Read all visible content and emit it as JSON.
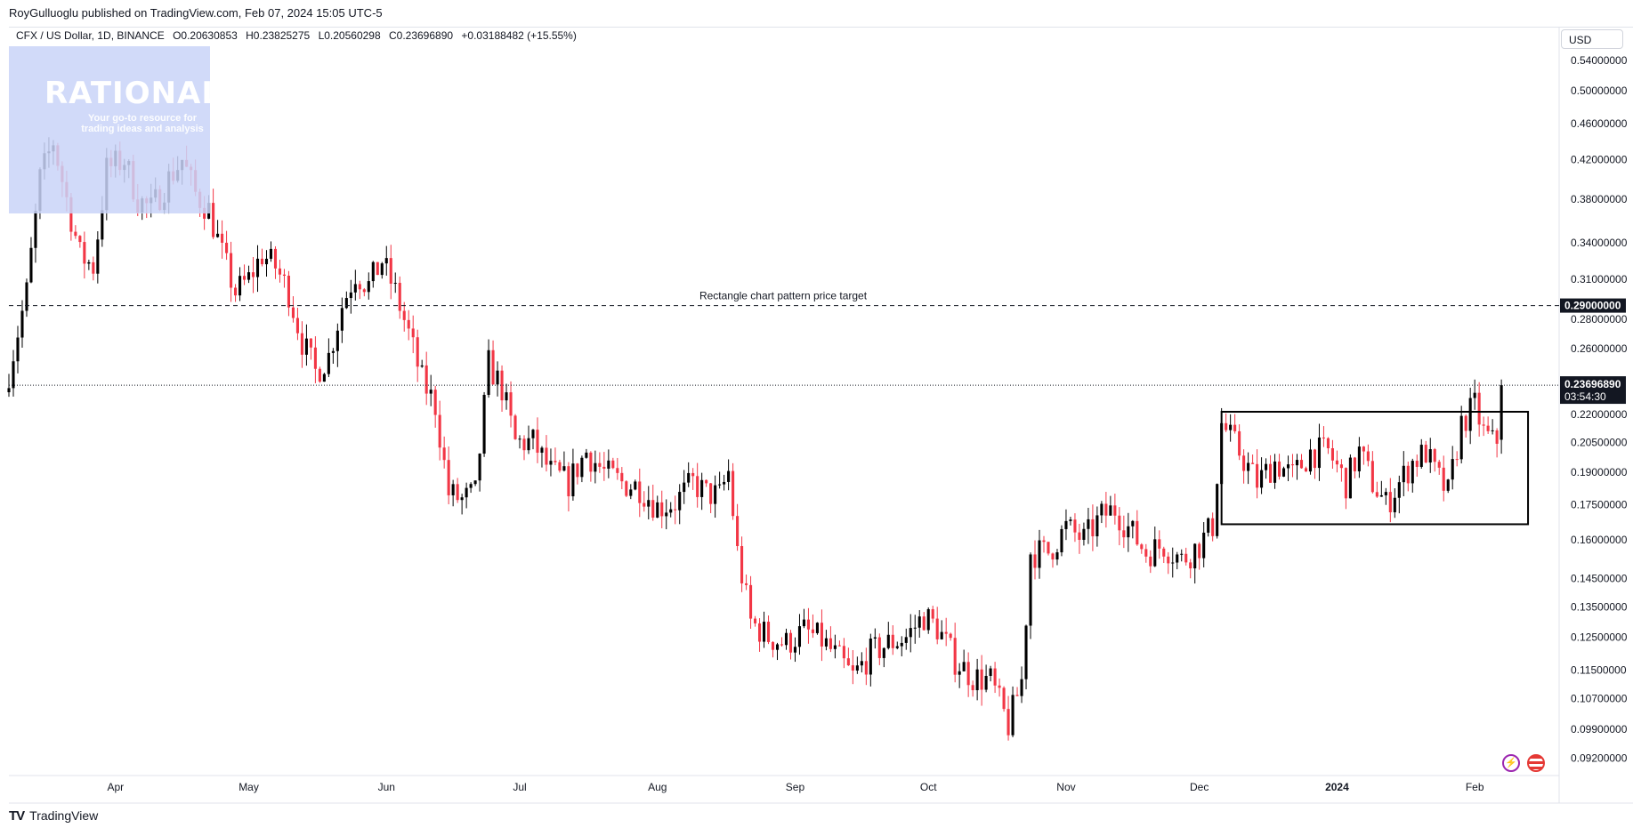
{
  "publisher_line": "RoyGulluoglu published on TradingView.com, Feb 07, 2024 15:05 UTC-5",
  "symbol": {
    "name": "CFX / US Dollar, 1D, BINANCE",
    "open": "O0.20630853",
    "high": "H0.23825275",
    "low": "L0.20560298",
    "close": "C0.23696890",
    "change": "+0.03188482 (+15.55%)"
  },
  "watermark": {
    "title": "RATIONALE",
    "subtitle": "Your go-to resource for trading ideas and analysis"
  },
  "currency_label": "USD",
  "footer_brand": "TradingView",
  "colors": {
    "up": "#000000",
    "down": "#f23645",
    "price_tag_bg": "#131722",
    "watermark_bg": "#c9d3f8"
  },
  "chart_data": {
    "type": "candlestick",
    "scale": "log",
    "ylim": [
      0.088,
      0.56
    ],
    "y_ticks": [
      "0.54000000",
      "0.50000000",
      "0.46000000",
      "0.42000000",
      "0.38000000",
      "0.34000000",
      "0.31000000",
      "0.28000000",
      "0.26000000",
      "0.22000000",
      "0.20500000",
      "0.19000000",
      "0.17500000",
      "0.16000000",
      "0.14500000",
      "0.13500000",
      "0.12500000",
      "0.11500000",
      "0.10700000",
      "0.09900000",
      "0.09200000"
    ],
    "x_range": [
      "2023-03-08",
      "2024-02-20"
    ],
    "x_ticks": [
      {
        "label": "Apr",
        "date": "2023-04-01"
      },
      {
        "label": "May",
        "date": "2023-05-01"
      },
      {
        "label": "Jun",
        "date": "2023-06-01"
      },
      {
        "label": "Jul",
        "date": "2023-07-01"
      },
      {
        "label": "Aug",
        "date": "2023-08-01"
      },
      {
        "label": "Sep",
        "date": "2023-09-01"
      },
      {
        "label": "Oct",
        "date": "2023-10-01"
      },
      {
        "label": "Nov",
        "date": "2023-11-01"
      },
      {
        "label": "Dec",
        "date": "2023-12-01"
      },
      {
        "label": "2024",
        "date": "2024-01-01"
      },
      {
        "label": "Feb",
        "date": "2024-02-01"
      }
    ],
    "current_price": {
      "value": 0.2369689,
      "label": "0.23696890",
      "countdown": "03:54:30"
    },
    "target_level": {
      "value": 0.29,
      "label": "0.29000000",
      "annotation": "Rectangle chart pattern price target"
    },
    "rectangle": {
      "start": "2023-12-06",
      "end": "2024-02-13",
      "top": 0.2215,
      "bottom": 0.1665
    },
    "closes": [
      [
        "2023-03-08",
        0.245
      ],
      [
        "2023-03-12",
        0.3
      ],
      [
        "2023-03-15",
        0.4
      ],
      [
        "2023-03-18",
        0.44
      ],
      [
        "2023-03-21",
        0.38
      ],
      [
        "2023-03-24",
        0.33
      ],
      [
        "2023-03-27",
        0.32
      ],
      [
        "2023-03-30",
        0.41
      ],
      [
        "2023-04-03",
        0.42
      ],
      [
        "2023-04-06",
        0.38
      ],
      [
        "2023-04-09",
        0.37
      ],
      [
        "2023-04-13",
        0.4
      ],
      [
        "2023-04-16",
        0.42
      ],
      [
        "2023-04-19",
        0.385
      ],
      [
        "2023-04-22",
        0.37
      ],
      [
        "2023-04-25",
        0.33
      ],
      [
        "2023-04-28",
        0.3
      ],
      [
        "2023-05-01",
        0.31
      ],
      [
        "2023-05-04",
        0.33
      ],
      [
        "2023-05-07",
        0.32
      ],
      [
        "2023-05-10",
        0.3
      ],
      [
        "2023-05-13",
        0.265
      ],
      [
        "2023-05-16",
        0.245
      ],
      [
        "2023-05-19",
        0.255
      ],
      [
        "2023-05-22",
        0.29
      ],
      [
        "2023-05-25",
        0.315
      ],
      [
        "2023-05-28",
        0.305
      ],
      [
        "2023-05-31",
        0.325
      ],
      [
        "2023-06-03",
        0.3
      ],
      [
        "2023-06-06",
        0.27
      ],
      [
        "2023-06-09",
        0.24
      ],
      [
        "2023-06-12",
        0.225
      ],
      [
        "2023-06-15",
        0.18
      ],
      [
        "2023-06-18",
        0.177
      ],
      [
        "2023-06-21",
        0.18
      ],
      [
        "2023-06-24",
        0.25
      ],
      [
        "2023-06-27",
        0.235
      ],
      [
        "2023-06-30",
        0.205
      ],
      [
        "2023-07-04",
        0.205
      ],
      [
        "2023-07-08",
        0.19
      ],
      [
        "2023-07-12",
        0.185
      ],
      [
        "2023-07-16",
        0.2
      ],
      [
        "2023-07-20",
        0.19
      ],
      [
        "2023-07-24",
        0.185
      ],
      [
        "2023-07-28",
        0.183
      ],
      [
        "2023-08-01",
        0.174
      ],
      [
        "2023-08-05",
        0.176
      ],
      [
        "2023-08-09",
        0.185
      ],
      [
        "2023-08-12",
        0.18
      ],
      [
        "2023-08-15",
        0.179
      ],
      [
        "2023-08-17",
        0.19
      ],
      [
        "2023-08-19",
        0.155
      ],
      [
        "2023-08-22",
        0.13
      ],
      [
        "2023-08-26",
        0.125
      ],
      [
        "2023-08-30",
        0.123
      ],
      [
        "2023-09-03",
        0.127
      ],
      [
        "2023-09-07",
        0.124
      ],
      [
        "2023-09-11",
        0.118
      ],
      [
        "2023-09-14",
        0.113
      ],
      [
        "2023-09-18",
        0.12
      ],
      [
        "2023-09-22",
        0.123
      ],
      [
        "2023-09-26",
        0.125
      ],
      [
        "2023-09-30",
        0.132
      ],
      [
        "2023-10-03",
        0.128
      ],
      [
        "2023-10-07",
        0.118
      ],
      [
        "2023-10-11",
        0.113
      ],
      [
        "2023-10-15",
        0.112
      ],
      [
        "2023-10-19",
        0.1
      ],
      [
        "2023-10-22",
        0.112
      ],
      [
        "2023-10-24",
        0.155
      ],
      [
        "2023-10-28",
        0.155
      ],
      [
        "2023-11-01",
        0.165
      ],
      [
        "2023-11-05",
        0.16
      ],
      [
        "2023-11-09",
        0.17
      ],
      [
        "2023-11-12",
        0.173
      ],
      [
        "2023-11-15",
        0.165
      ],
      [
        "2023-11-19",
        0.155
      ],
      [
        "2023-11-23",
        0.158
      ],
      [
        "2023-11-27",
        0.152
      ],
      [
        "2023-12-01",
        0.158
      ],
      [
        "2023-12-04",
        0.166
      ],
      [
        "2023-12-06",
        0.215
      ],
      [
        "2023-12-10",
        0.2
      ],
      [
        "2023-12-14",
        0.185
      ],
      [
        "2023-12-18",
        0.195
      ],
      [
        "2023-12-22",
        0.188
      ],
      [
        "2023-12-26",
        0.2
      ],
      [
        "2023-12-30",
        0.2
      ],
      [
        "2024-01-03",
        0.185
      ],
      [
        "2024-01-06",
        0.2
      ],
      [
        "2024-01-09",
        0.185
      ],
      [
        "2024-01-12",
        0.175
      ],
      [
        "2024-01-15",
        0.185
      ],
      [
        "2024-01-18",
        0.195
      ],
      [
        "2024-01-21",
        0.2
      ],
      [
        "2024-01-23",
        0.19
      ],
      [
        "2024-01-26",
        0.18
      ],
      [
        "2024-01-29",
        0.215
      ],
      [
        "2024-02-01",
        0.225
      ],
      [
        "2024-02-03",
        0.21
      ],
      [
        "2024-02-05",
        0.205
      ],
      [
        "2024-02-06",
        0.2063
      ],
      [
        "2024-02-07",
        0.2369689
      ]
    ]
  }
}
